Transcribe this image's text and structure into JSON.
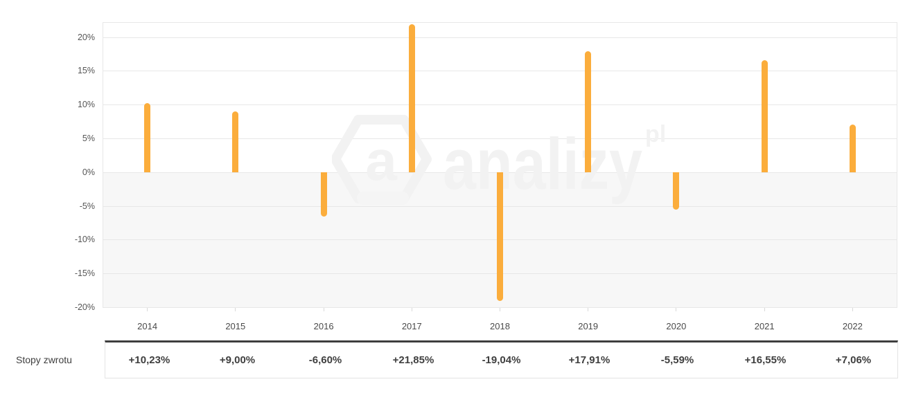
{
  "chart_data": {
    "type": "bar",
    "title": "",
    "categories": [
      "2014",
      "2015",
      "2016",
      "2017",
      "2018",
      "2019",
      "2020",
      "2021",
      "2022"
    ],
    "values": [
      10.23,
      9.0,
      -6.6,
      21.85,
      -19.04,
      17.91,
      -5.59,
      16.55,
      7.06
    ],
    "xlabel": "",
    "ylabel": "",
    "ylim": [
      -20,
      22.1
    ],
    "yticks": [
      20,
      15,
      10,
      5,
      0,
      -5,
      -10,
      -15,
      -20
    ],
    "ytick_labels": [
      "20%",
      "15%",
      "10%",
      "5%",
      "0%",
      "-5%",
      "-10%",
      "-15%",
      "-20%"
    ],
    "grid": true,
    "legend": "none",
    "bar_color": "#FBAD3C",
    "negative_region_color": "#f7f7f7",
    "gridline_color": "#e7e7e7"
  },
  "table": {
    "row_label": "Stopy zwrotu",
    "values": [
      "+10,23%",
      "+9,00%",
      "-6,60%",
      "+21,85%",
      "-19,04%",
      "+17,91%",
      "-5,59%",
      "+16,55%",
      "+7,06%"
    ]
  },
  "watermark": {
    "logo_letter": "a",
    "text": "analizy",
    "suffix": "pl",
    "color": "#f2f2f2"
  },
  "colors": {
    "table_top_border": "#3e3e3e",
    "axis_label": "#555555",
    "year_label": "#4a4a4a",
    "value_text": "#3f3f3f"
  }
}
